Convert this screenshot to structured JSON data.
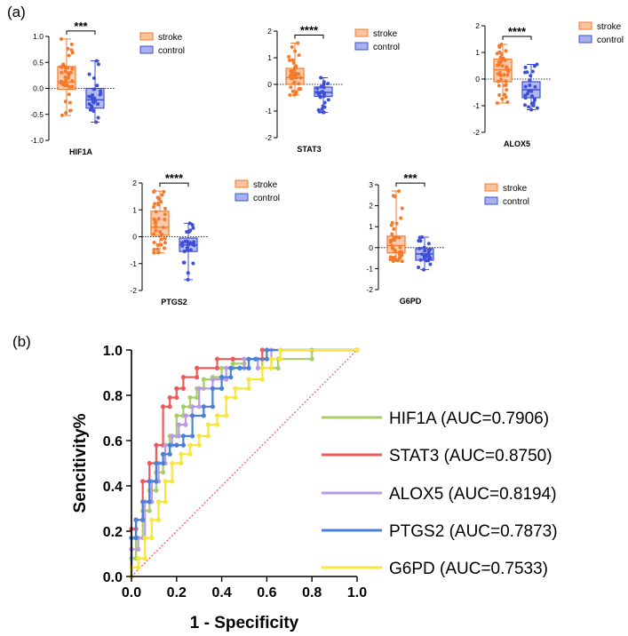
{
  "panel_a_label": "(a)",
  "panel_b_label": "(b)",
  "colors": {
    "stroke": "#f47a2c",
    "control": "#3d4fd6",
    "HIF1A": "#a6cf6b",
    "STAT3": "#ee5a5a",
    "ALOX5": "#b99be3",
    "PTGS2": "#4a80d8",
    "G6PD": "#f7e63b",
    "diagonal": "#ee3b3b"
  },
  "chart_data": [
    {
      "type": "box",
      "gene": "HIF1A",
      "xlabel": "HIF1A",
      "yticks": [
        "1.0",
        "0.5",
        "0.0",
        "-0.5",
        "-1.0"
      ],
      "ylim": [
        -1.0,
        1.0
      ],
      "significance": "***",
      "legend": [
        "stroke",
        "control"
      ],
      "groups": [
        {
          "name": "stroke",
          "min": -0.52,
          "q1": -0.02,
          "median": 0.12,
          "q3": 0.42,
          "max": 0.95
        },
        {
          "name": "control",
          "min": -0.65,
          "q1": -0.38,
          "median": -0.22,
          "q3": 0.0,
          "max": 0.53
        }
      ]
    },
    {
      "type": "box",
      "gene": "STAT3",
      "xlabel": "STAT3",
      "yticks": [
        "2",
        "1",
        "0",
        "-1",
        "-2"
      ],
      "ylim": [
        -2,
        2
      ],
      "significance": "****",
      "legend": [
        "stroke",
        "control"
      ],
      "groups": [
        {
          "name": "stroke",
          "min": -0.4,
          "q1": 0.0,
          "median": 0.25,
          "q3": 0.6,
          "max": 1.55
        },
        {
          "name": "control",
          "min": -1.05,
          "q1": -0.45,
          "median": -0.3,
          "q3": -0.1,
          "max": 0.25
        }
      ]
    },
    {
      "type": "box",
      "gene": "ALOX5",
      "xlabel": "ALOX5",
      "yticks": [
        "2",
        "1",
        "0",
        "-1",
        "-2"
      ],
      "ylim": [
        -2,
        2
      ],
      "significance": "****",
      "legend": [
        "stroke",
        "control"
      ],
      "groups": [
        {
          "name": "stroke",
          "min": -0.9,
          "q1": -0.1,
          "median": 0.35,
          "q3": 0.75,
          "max": 1.3
        },
        {
          "name": "control",
          "min": -1.15,
          "q1": -0.7,
          "median": -0.4,
          "q3": -0.1,
          "max": 0.55
        }
      ]
    },
    {
      "type": "box",
      "gene": "PTGS2",
      "xlabel": "PTGS2",
      "yticks": [
        "2",
        "1",
        "0",
        "-1",
        "-2"
      ],
      "ylim": [
        -2,
        2
      ],
      "significance": "****",
      "legend": [
        "stroke",
        "control"
      ],
      "groups": [
        {
          "name": "stroke",
          "min": -0.6,
          "q1": 0.05,
          "median": 0.35,
          "q3": 0.95,
          "max": 1.7
        },
        {
          "name": "control",
          "min": -1.6,
          "q1": -0.55,
          "median": -0.3,
          "q3": -0.05,
          "max": 0.5
        }
      ]
    },
    {
      "type": "box",
      "gene": "G6PD",
      "xlabel": "G6PD",
      "yticks": [
        "3",
        "2",
        "1",
        "0",
        "-1",
        "-2"
      ],
      "ylim": [
        -2,
        3
      ],
      "significance": "***",
      "legend": [
        "stroke",
        "control"
      ],
      "groups": [
        {
          "name": "stroke",
          "min": -0.65,
          "q1": -0.25,
          "median": 0.1,
          "q3": 0.55,
          "max": 2.7
        },
        {
          "name": "control",
          "min": -1.05,
          "q1": -0.6,
          "median": -0.3,
          "q3": -0.05,
          "max": 0.5
        }
      ]
    },
    {
      "type": "line",
      "title": "",
      "xlabel": "1 - Specificity",
      "ylabel": "Sencitivity%",
      "xlim": [
        0,
        1
      ],
      "ylim": [
        0,
        1
      ],
      "xticks": [
        "0.0",
        "0.2",
        "0.4",
        "0.6",
        "0.8",
        "1.0"
      ],
      "yticks": [
        "0.0",
        "0.2",
        "0.4",
        "0.6",
        "0.8",
        "1.0"
      ],
      "legend_position": "right",
      "series": [
        {
          "name": "HIF1A",
          "label": "HIF1A (AUC=0.7906)",
          "x": [
            0,
            0,
            0.02,
            0.02,
            0.05,
            0.05,
            0.08,
            0.08,
            0.11,
            0.11,
            0.14,
            0.14,
            0.17,
            0.17,
            0.2,
            0.2,
            0.23,
            0.23,
            0.26,
            0.26,
            0.29,
            0.29,
            0.32,
            0.32,
            0.36,
            0.36,
            0.4,
            0.4,
            0.45,
            0.45,
            0.5,
            0.5,
            0.58,
            0.58,
            0.65,
            0.65,
            0.8,
            0.8,
            1.0
          ],
          "y": [
            0,
            0.08,
            0.08,
            0.17,
            0.17,
            0.29,
            0.29,
            0.38,
            0.38,
            0.46,
            0.46,
            0.54,
            0.54,
            0.62,
            0.62,
            0.71,
            0.71,
            0.75,
            0.75,
            0.79,
            0.79,
            0.83,
            0.83,
            0.87,
            0.87,
            0.88,
            0.88,
            0.92,
            0.92,
            0.94,
            0.94,
            0.96,
            0.96,
            0.92,
            0.92,
            0.96,
            0.96,
            1.0,
            1.0
          ]
        },
        {
          "name": "STAT3",
          "label": "STAT3 (AUC=0.8750)",
          "x": [
            0,
            0,
            0.02,
            0.02,
            0.05,
            0.05,
            0.08,
            0.08,
            0.11,
            0.11,
            0.14,
            0.14,
            0.17,
            0.17,
            0.2,
            0.2,
            0.23,
            0.23,
            0.29,
            0.29,
            0.38,
            0.38,
            0.45,
            0.45,
            0.58,
            0.58,
            1.0
          ],
          "y": [
            0,
            0.21,
            0.21,
            0.25,
            0.25,
            0.42,
            0.42,
            0.5,
            0.5,
            0.58,
            0.58,
            0.75,
            0.75,
            0.79,
            0.79,
            0.83,
            0.83,
            0.88,
            0.88,
            0.92,
            0.92,
            0.96,
            0.96,
            0.96,
            0.96,
            1.0,
            1.0
          ]
        },
        {
          "name": "ALOX5",
          "label": "ALOX5 (AUC=0.8194)",
          "x": [
            0,
            0,
            0.03,
            0.03,
            0.06,
            0.06,
            0.09,
            0.09,
            0.12,
            0.12,
            0.15,
            0.15,
            0.18,
            0.18,
            0.21,
            0.21,
            0.24,
            0.24,
            0.27,
            0.27,
            0.3,
            0.3,
            0.36,
            0.36,
            0.42,
            0.42,
            0.5,
            0.5,
            0.56,
            0.56,
            0.62,
            0.62,
            1.0
          ],
          "y": [
            0,
            0.12,
            0.12,
            0.17,
            0.17,
            0.33,
            0.33,
            0.42,
            0.42,
            0.5,
            0.5,
            0.58,
            0.58,
            0.62,
            0.62,
            0.67,
            0.67,
            0.71,
            0.71,
            0.75,
            0.75,
            0.83,
            0.83,
            0.87,
            0.87,
            0.92,
            0.92,
            0.96,
            0.96,
            0.92,
            0.92,
            1.0,
            1.0
          ]
        },
        {
          "name": "PTGS2",
          "label": "PTGS2 (AUC=0.7873)",
          "x": [
            0,
            0,
            0.02,
            0.02,
            0.05,
            0.05,
            0.08,
            0.08,
            0.11,
            0.11,
            0.14,
            0.14,
            0.17,
            0.17,
            0.2,
            0.2,
            0.23,
            0.23,
            0.27,
            0.27,
            0.32,
            0.32,
            0.36,
            0.36,
            0.4,
            0.4,
            0.44,
            0.44,
            0.48,
            0.48,
            0.52,
            0.52,
            0.55,
            0.55,
            0.6,
            0.6,
            1.0
          ],
          "y": [
            0,
            0.17,
            0.17,
            0.25,
            0.25,
            0.33,
            0.33,
            0.42,
            0.42,
            0.5,
            0.5,
            0.54,
            0.54,
            0.58,
            0.58,
            0.58,
            0.58,
            0.62,
            0.62,
            0.71,
            0.71,
            0.75,
            0.75,
            0.83,
            0.83,
            0.88,
            0.88,
            0.92,
            0.92,
            0.92,
            0.92,
            0.96,
            0.96,
            0.96,
            0.96,
            1.0,
            1.0
          ]
        },
        {
          "name": "G6PD",
          "label": "G6PD (AUC=0.7533)",
          "x": [
            0,
            0,
            0.03,
            0.03,
            0.06,
            0.06,
            0.09,
            0.09,
            0.12,
            0.12,
            0.15,
            0.15,
            0.18,
            0.18,
            0.22,
            0.22,
            0.26,
            0.26,
            0.3,
            0.3,
            0.34,
            0.34,
            0.38,
            0.38,
            0.42,
            0.42,
            0.46,
            0.46,
            0.52,
            0.52,
            0.58,
            0.58,
            0.62,
            0.62,
            0.66,
            0.66,
            1.0
          ],
          "y": [
            0,
            0.04,
            0.04,
            0.08,
            0.08,
            0.17,
            0.17,
            0.25,
            0.25,
            0.33,
            0.33,
            0.42,
            0.42,
            0.5,
            0.5,
            0.54,
            0.54,
            0.58,
            0.58,
            0.62,
            0.62,
            0.67,
            0.67,
            0.71,
            0.71,
            0.79,
            0.79,
            0.83,
            0.83,
            0.87,
            0.87,
            0.92,
            0.92,
            0.96,
            0.96,
            1.0,
            1.0
          ]
        }
      ]
    }
  ]
}
